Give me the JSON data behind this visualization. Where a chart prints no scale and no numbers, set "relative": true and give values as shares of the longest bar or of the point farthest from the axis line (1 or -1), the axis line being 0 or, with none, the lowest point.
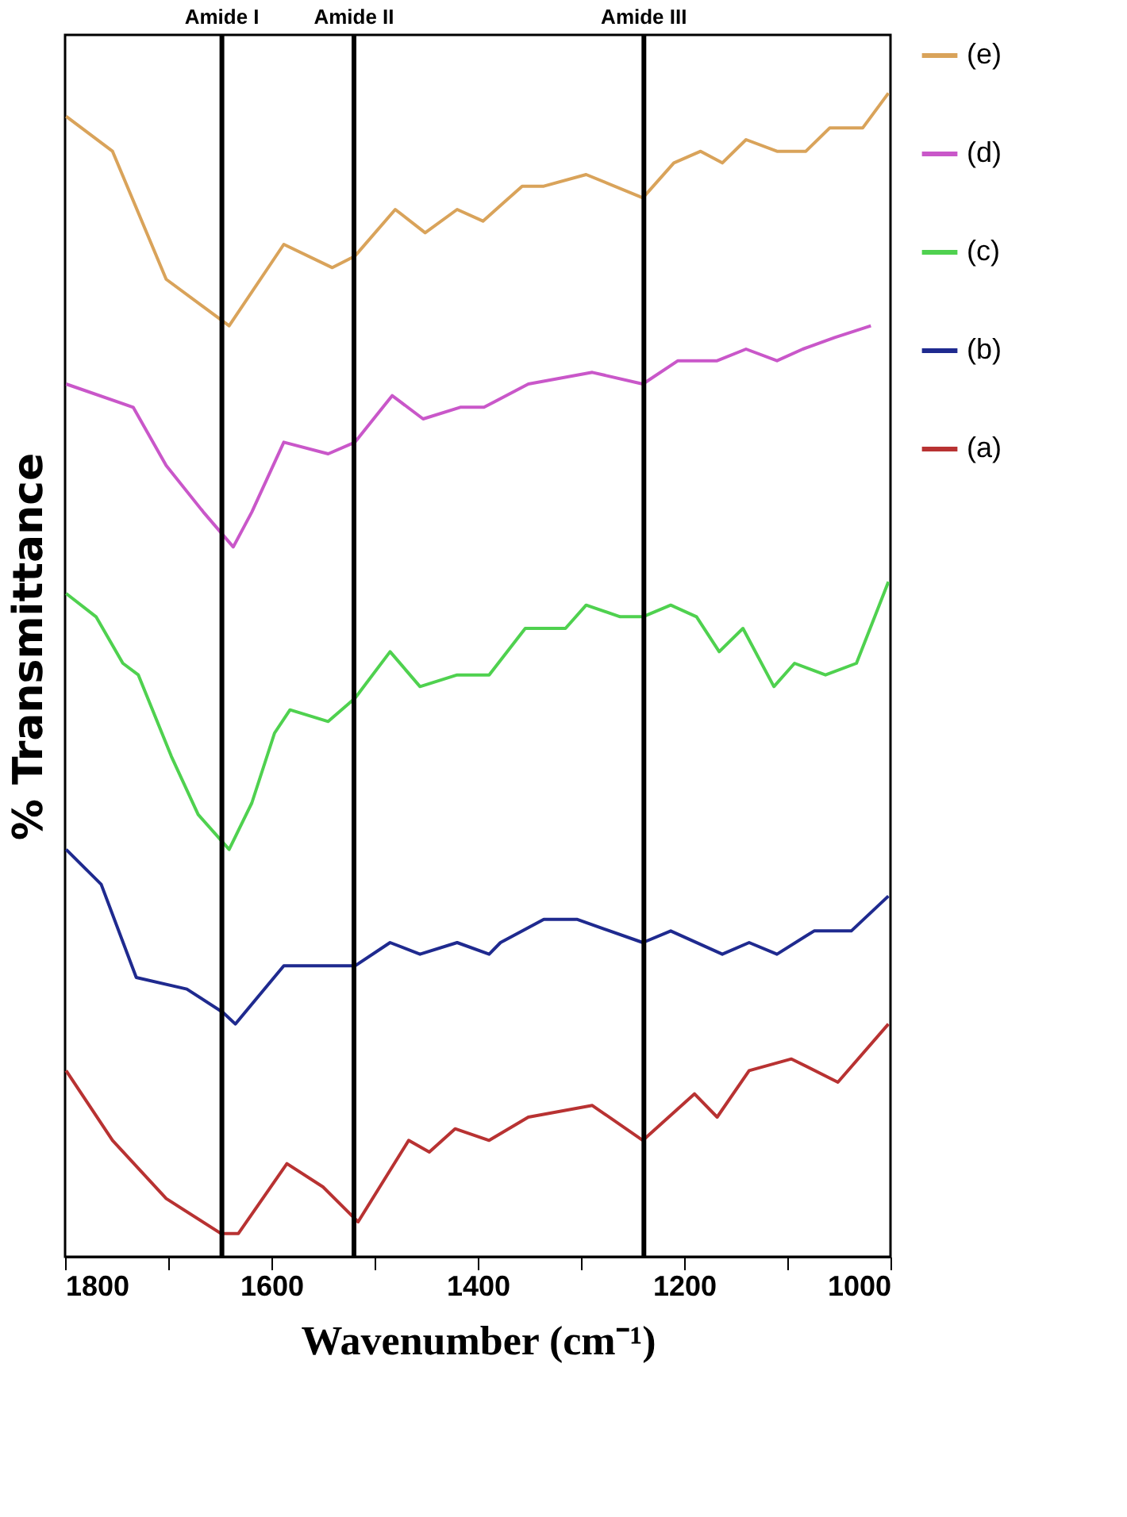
{
  "chart_data": {
    "type": "line",
    "relative": true,
    "xlabel": "Wavenumber (cm⁻¹)",
    "ylabel": "% Transmittance",
    "xlim": [
      1800,
      1000
    ],
    "xticks": [
      1800,
      {
        "value": 1700,
        "label": null
      },
      1600,
      {
        "value": 1500,
        "label": null
      },
      1400,
      {
        "value": 1300,
        "label": null
      },
      1200,
      {
        "value": 1100,
        "label": null
      },
      1000
    ],
    "grid": false,
    "legend": "right",
    "ref_lines": [
      {
        "axis": "x",
        "value": 1648,
        "label": "Amide I",
        "color": "#000000"
      },
      {
        "axis": "x",
        "value": 1520,
        "label": "Amide II",
        "color": "#000000"
      },
      {
        "axis": "x",
        "value": 1239,
        "label": "Amide III",
        "color": "#000000"
      }
    ],
    "series": [
      {
        "name": "(e)",
        "color": "#d9a35a",
        "x": [
          1799,
          1754,
          1702,
          1641,
          1588,
          1541,
          1519,
          1480,
          1451,
          1420,
          1395,
          1357,
          1336,
          1295,
          1240,
          1210,
          1184,
          1163,
          1140,
          1110,
          1082,
          1059,
          1027,
          1002
        ],
        "values": [
          0.98,
          0.95,
          0.84,
          0.8,
          0.87,
          0.85,
          0.86,
          0.9,
          0.88,
          0.9,
          0.89,
          0.92,
          0.92,
          0.93,
          0.91,
          0.94,
          0.95,
          0.94,
          0.96,
          0.95,
          0.95,
          0.97,
          0.97,
          1.0
        ]
      },
      {
        "name": "(d)",
        "color": "#c957c9",
        "x": [
          1799,
          1734,
          1702,
          1666,
          1637,
          1619,
          1588,
          1545,
          1519,
          1483,
          1453,
          1417,
          1394,
          1351,
          1289,
          1240,
          1206,
          1168,
          1140,
          1110,
          1085,
          1054,
          1019
        ],
        "values": [
          0.75,
          0.73,
          0.68,
          0.64,
          0.61,
          0.64,
          0.7,
          0.69,
          0.7,
          0.74,
          0.72,
          0.73,
          0.73,
          0.75,
          0.76,
          0.75,
          0.77,
          0.77,
          0.78,
          0.77,
          0.78,
          0.79,
          0.8
        ]
      },
      {
        "name": "(c)",
        "color": "#4fd14f",
        "x": [
          1799,
          1770,
          1744,
          1729,
          1697,
          1671,
          1641,
          1619,
          1597,
          1582,
          1545,
          1519,
          1485,
          1456,
          1420,
          1389,
          1354,
          1336,
          1315,
          1295,
          1262,
          1240,
          1213,
          1188,
          1166,
          1143,
          1113,
          1093,
          1063,
          1033,
          1002
        ],
        "values": [
          0.57,
          0.55,
          0.51,
          0.5,
          0.43,
          0.38,
          0.35,
          0.39,
          0.45,
          0.47,
          0.46,
          0.48,
          0.52,
          0.49,
          0.5,
          0.5,
          0.54,
          0.54,
          0.54,
          0.56,
          0.55,
          0.55,
          0.56,
          0.55,
          0.52,
          0.54,
          0.49,
          0.51,
          0.5,
          0.51,
          0.58
        ]
      },
      {
        "name": "(b)",
        "color": "#1f2a8f",
        "x": [
          1799,
          1765,
          1731,
          1682,
          1647,
          1635,
          1588,
          1535,
          1519,
          1485,
          1456,
          1420,
          1389,
          1378,
          1336,
          1304,
          1240,
          1213,
          1163,
          1137,
          1110,
          1074,
          1038,
          1002
        ],
        "values": [
          0.35,
          0.32,
          0.24,
          0.23,
          0.21,
          0.2,
          0.25,
          0.25,
          0.25,
          0.27,
          0.26,
          0.27,
          0.26,
          0.27,
          0.29,
          0.29,
          0.27,
          0.28,
          0.26,
          0.27,
          0.26,
          0.28,
          0.28,
          0.31
        ]
      },
      {
        "name": "(a)",
        "color": "#b83232",
        "x": [
          1799,
          1754,
          1702,
          1649,
          1632,
          1585,
          1550,
          1516,
          1467,
          1447,
          1422,
          1389,
          1351,
          1289,
          1240,
          1190,
          1168,
          1137,
          1096,
          1051,
          1002
        ],
        "values": [
          0.16,
          0.1,
          0.05,
          0.02,
          0.02,
          0.08,
          0.06,
          0.03,
          0.1,
          0.09,
          0.11,
          0.1,
          0.12,
          0.13,
          0.1,
          0.14,
          0.12,
          0.16,
          0.17,
          0.15,
          0.2
        ]
      }
    ]
  }
}
